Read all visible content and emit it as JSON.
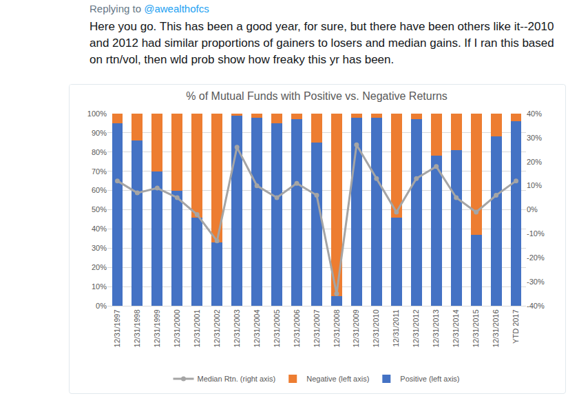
{
  "tweet": {
    "reply_to_label": "Replying to",
    "reply_to": "@awealthofcs",
    "text": "Here you go. This has been a good year, for sure, but there have been others like it--2010 and 2012 had similar proportions of gainers to losers and median gains. If I ran this based on rtn/vol, then wld prob show how freaky this yr has been."
  },
  "chart_data": {
    "type": "bar",
    "stacked": true,
    "title": "% of Mutual Funds with Positive vs. Negative Returns",
    "categories": [
      "12/31/1997",
      "12/31/1998",
      "12/31/1999",
      "12/31/2000",
      "12/31/2001",
      "12/31/2002",
      "12/31/2003",
      "12/31/2004",
      "12/31/2005",
      "12/31/2006",
      "12/31/2007",
      "12/31/2008",
      "12/31/2009",
      "12/31/2010",
      "12/31/2011",
      "12/31/2012",
      "12/31/2013",
      "12/31/2014",
      "12/31/2015",
      "12/31/2016",
      "YTD 2017"
    ],
    "series": [
      {
        "name": "Positive (left axis)",
        "type": "bar",
        "color": "#4472c4",
        "values": [
          95,
          86,
          70,
          60,
          46,
          33,
          99,
          98,
          95,
          97,
          85,
          5,
          98,
          98,
          46,
          97,
          78,
          81,
          37,
          88,
          96
        ]
      },
      {
        "name": "Negative (left axis)",
        "type": "bar",
        "color": "#ed7d31",
        "values": [
          5,
          14,
          30,
          40,
          54,
          67,
          1,
          2,
          5,
          3,
          15,
          95,
          2,
          2,
          54,
          3,
          22,
          19,
          63,
          12,
          4
        ]
      },
      {
        "name": "Median Rtn. (right axis)",
        "type": "line",
        "axis": "y2",
        "color": "#a5a5a5",
        "marker": "circle",
        "values": [
          12,
          7,
          9,
          5,
          -2,
          -13,
          26,
          10,
          5,
          11,
          6,
          -35,
          27,
          13,
          -1,
          13,
          18,
          5,
          -1,
          6,
          12
        ]
      }
    ],
    "ylim": [
      0,
      100
    ],
    "yticks": [
      {
        "value": 0,
        "label": "0%"
      },
      {
        "value": 10,
        "label": "10%"
      },
      {
        "value": 20,
        "label": "20%"
      },
      {
        "value": 30,
        "label": "30%"
      },
      {
        "value": 40,
        "label": "40%"
      },
      {
        "value": 50,
        "label": "50%"
      },
      {
        "value": 60,
        "label": "60%"
      },
      {
        "value": 70,
        "label": "70%"
      },
      {
        "value": 80,
        "label": "80%"
      },
      {
        "value": 90,
        "label": "90%"
      },
      {
        "value": 100,
        "label": "100%"
      }
    ],
    "y2lim": [
      -40,
      40
    ],
    "y2ticks": [
      {
        "value": -40,
        "label": "-40%"
      },
      {
        "value": -30,
        "label": "-30%"
      },
      {
        "value": -20,
        "label": "-20%"
      },
      {
        "value": -10,
        "label": "-10%"
      },
      {
        "value": 0,
        "label": "0%"
      },
      {
        "value": 10,
        "label": "10%"
      },
      {
        "value": 20,
        "label": "20%"
      },
      {
        "value": 30,
        "label": "30%"
      },
      {
        "value": 40,
        "label": "40%"
      }
    ],
    "grid": true,
    "legend": "bottom"
  }
}
